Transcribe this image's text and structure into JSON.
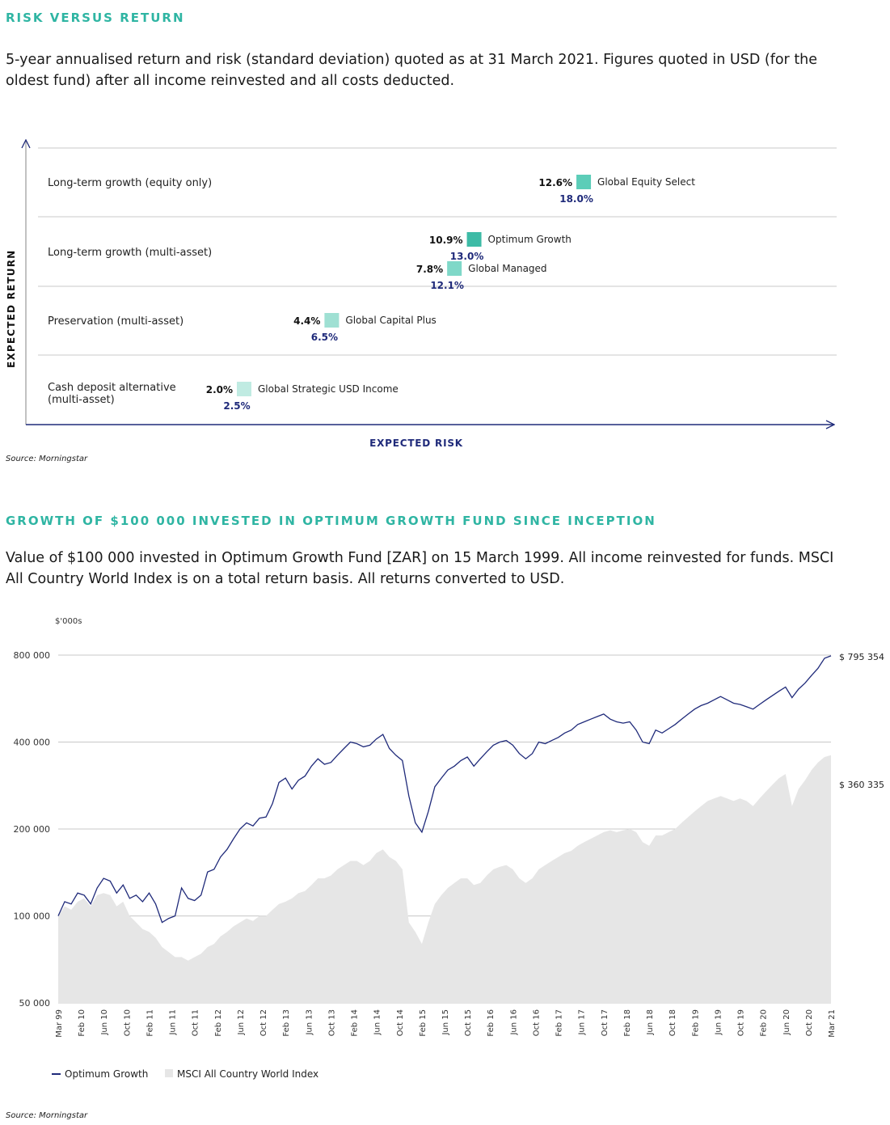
{
  "section1": {
    "title": "RISK VERSUS RETURN",
    "description": "5-year annualised return and risk (standard deviation) quoted as at 31 March 2021. Figures quoted in USD (for the oldest fund) after all income reinvested and all costs deducted.",
    "source": "Source: Morningstar"
  },
  "section2": {
    "title": "GROWTH OF $100 000 INVESTED IN OPTIMUM GROWTH FUND SINCE INCEPTION",
    "description": "Value of $100 000 invested in Optimum Growth Fund [ZAR] on 15 March 1999. All income reinvested for funds. MSCI All Country World Index is on a total return basis. All returns converted to USD.",
    "source": "Source: Morningstar"
  },
  "colors": {
    "teal_title": "#2fb5a3",
    "navy": "#1f2a7a",
    "area_grey": "#e6e6e6",
    "grid": "#c8c8c8"
  },
  "chart_data": [
    {
      "type": "scatter",
      "xlabel": "EXPECTED RISK",
      "ylabel": "EXPECTED RETURN",
      "categories": [
        "Long-term growth (equity only)",
        "Long-term growth (multi-asset)",
        "Preservation (multi-asset)",
        "Cash deposit alternative (multi-asset)"
      ],
      "points": [
        {
          "fund": "Global Equity Select",
          "category": "Long-term growth (equity only)",
          "return_label": "12.6%",
          "risk_label": "18.0%",
          "return": 12.6,
          "risk": 18.0,
          "color": "#5ccdb8"
        },
        {
          "fund": "Optimum Growth",
          "category": "Long-term growth (multi-asset)",
          "return_label": "10.9%",
          "risk_label": "13.0%",
          "return": 10.9,
          "risk": 13.0,
          "color": "#3dbba6"
        },
        {
          "fund": "Global Managed",
          "category": "Long-term growth (multi-asset)",
          "return_label": "7.8%",
          "risk_label": "12.1%",
          "return": 7.8,
          "risk": 12.1,
          "color": "#7fd8c8"
        },
        {
          "fund": "Global Capital Plus",
          "category": "Preservation (multi-asset)",
          "return_label": "4.4%",
          "risk_label": "6.5%",
          "return": 4.4,
          "risk": 6.5,
          "color": "#9fe0d3"
        },
        {
          "fund": "Global Strategic USD Income",
          "category": "Cash deposit alternative (multi-asset)",
          "return_label": "2.0%",
          "risk_label": "2.5%",
          "return": 2.0,
          "risk": 2.5,
          "color": "#c0ebe2"
        }
      ]
    },
    {
      "type": "line",
      "yunit_label": "$'000s",
      "y_scale": "log",
      "ylim": [
        50000,
        800000
      ],
      "yticks": [
        800000,
        400000,
        200000,
        100000,
        50000
      ],
      "ytick_labels": [
        "800 000",
        "400 000",
        "200 000",
        "100 000",
        "50 000"
      ],
      "x_tick_labels": [
        "Mar 99",
        "Feb 10",
        "Jun 10",
        "Oct 10",
        "Feb 11",
        "Jun 11",
        "Oct 11",
        "Feb 12",
        "Jun 12",
        "Oct 12",
        "Feb 13",
        "Jun 13",
        "Oct 13",
        "Feb 14",
        "Jun 14",
        "Oct 14",
        "Feb 15",
        "Jun 15",
        "Oct 15",
        "Feb 16",
        "Jun 16",
        "Oct 16",
        "Feb 17",
        "Jun 17",
        "Oct 17",
        "Feb 18",
        "Jun 18",
        "Oct 18",
        "Feb 19",
        "Jun 19",
        "Oct 19",
        "Feb 20",
        "Jun 20",
        "Oct 20",
        "Mar 21"
      ],
      "end_labels": {
        "optimum": "$ 795 354",
        "msci": "$ 360 335"
      },
      "legend": [
        "Optimum Growth",
        "MSCI All Country World Index"
      ],
      "series": [
        {
          "name": "Optimum Growth",
          "style": "line",
          "color": "#1f2a7a",
          "values": [
            100000,
            112000,
            110000,
            120000,
            118000,
            110000,
            125000,
            135000,
            132000,
            120000,
            128000,
            115000,
            118000,
            112000,
            120000,
            110000,
            95000,
            98000,
            100000,
            125000,
            115000,
            113000,
            118000,
            142000,
            145000,
            160000,
            170000,
            185000,
            200000,
            210000,
            205000,
            218000,
            220000,
            245000,
            290000,
            300000,
            275000,
            295000,
            305000,
            330000,
            350000,
            335000,
            340000,
            360000,
            380000,
            400000,
            395000,
            385000,
            390000,
            410000,
            425000,
            380000,
            360000,
            345000,
            260000,
            210000,
            195000,
            230000,
            280000,
            300000,
            320000,
            330000,
            345000,
            355000,
            330000,
            350000,
            370000,
            390000,
            400000,
            405000,
            390000,
            365000,
            350000,
            365000,
            400000,
            395000,
            405000,
            415000,
            430000,
            440000,
            460000,
            470000,
            480000,
            490000,
            500000,
            480000,
            470000,
            465000,
            470000,
            440000,
            400000,
            395000,
            440000,
            430000,
            445000,
            460000,
            480000,
            500000,
            520000,
            535000,
            545000,
            560000,
            575000,
            560000,
            545000,
            540000,
            530000,
            520000,
            540000,
            560000,
            580000,
            600000,
            620000,
            570000,
            610000,
            640000,
            680000,
            720000,
            780000,
            795354
          ]
        },
        {
          "name": "MSCI All Country World Index",
          "style": "area",
          "color": "#e6e6e6",
          "values": [
            100000,
            108000,
            105000,
            112000,
            115000,
            108000,
            118000,
            120000,
            118000,
            108000,
            112000,
            100000,
            95000,
            90000,
            88000,
            84000,
            78000,
            75000,
            72000,
            72000,
            70000,
            72000,
            74000,
            78000,
            80000,
            85000,
            88000,
            92000,
            95000,
            98000,
            96000,
            100000,
            100000,
            105000,
            110000,
            112000,
            115000,
            120000,
            122000,
            128000,
            135000,
            135000,
            138000,
            145000,
            150000,
            155000,
            155000,
            150000,
            155000,
            165000,
            170000,
            160000,
            155000,
            145000,
            95000,
            88000,
            80000,
            95000,
            110000,
            118000,
            125000,
            130000,
            135000,
            135000,
            128000,
            130000,
            138000,
            145000,
            148000,
            150000,
            145000,
            135000,
            130000,
            135000,
            145000,
            150000,
            155000,
            160000,
            165000,
            168000,
            175000,
            180000,
            185000,
            190000,
            195000,
            198000,
            195000,
            198000,
            200000,
            195000,
            180000,
            175000,
            190000,
            190000,
            195000,
            200000,
            210000,
            220000,
            230000,
            240000,
            250000,
            255000,
            260000,
            255000,
            250000,
            255000,
            250000,
            240000,
            255000,
            270000,
            285000,
            300000,
            310000,
            240000,
            275000,
            295000,
            320000,
            340000,
            355000,
            360335
          ]
        }
      ]
    }
  ]
}
